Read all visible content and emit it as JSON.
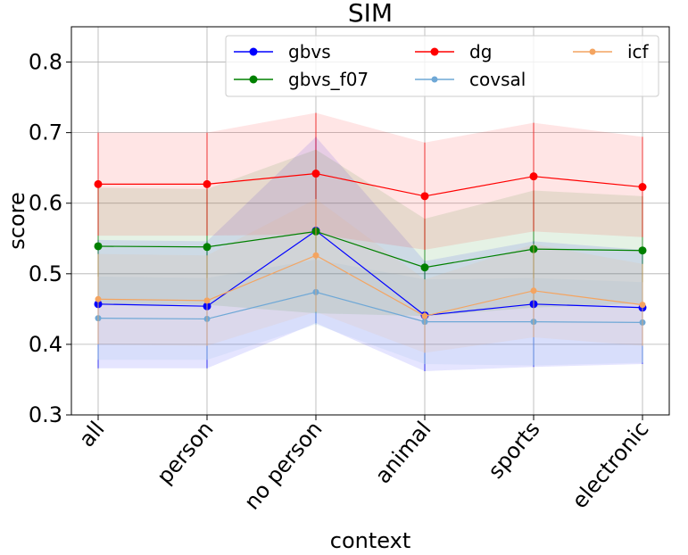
{
  "chart_data": {
    "type": "line",
    "title": "SIM",
    "xlabel": "context",
    "ylabel": "score",
    "categories": [
      "all",
      "person",
      "no person",
      "animal",
      "sports",
      "electronic"
    ],
    "ylim": [
      0.3,
      0.85
    ],
    "yticks": [
      "0.3",
      "0.4",
      "0.5",
      "0.6",
      "0.7",
      "0.8"
    ],
    "grid": true,
    "legend_position": "top-right",
    "series": [
      {
        "name": "gbvs",
        "color": "#0000ff",
        "values": [
          0.457,
          0.454,
          0.561,
          0.441,
          0.457,
          0.452
        ],
        "band_lower": [
          0.366,
          0.366,
          0.43,
          0.362,
          0.368,
          0.372
        ],
        "band_upper": [
          0.548,
          0.546,
          0.694,
          0.518,
          0.546,
          0.534
        ]
      },
      {
        "name": "gbvs_f07",
        "color": "#008000",
        "values": [
          0.539,
          0.538,
          0.56,
          0.509,
          0.535,
          0.533
        ],
        "band_lower": [
          0.456,
          0.456,
          0.444,
          0.44,
          0.452,
          0.458
        ],
        "band_upper": [
          0.622,
          0.62,
          0.676,
          0.578,
          0.618,
          0.61
        ]
      },
      {
        "name": "dg",
        "color": "#ff0000",
        "values": [
          0.627,
          0.627,
          0.642,
          0.61,
          0.638,
          0.623
        ],
        "band_lower": [
          0.554,
          0.554,
          0.556,
          0.534,
          0.56,
          0.552
        ],
        "band_upper": [
          0.7,
          0.7,
          0.728,
          0.686,
          0.714,
          0.694
        ]
      },
      {
        "name": "covsal",
        "color": "#6fa8d6",
        "values": [
          0.437,
          0.436,
          0.474,
          0.432,
          0.432,
          0.431
        ],
        "band_lower": [
          0.378,
          0.378,
          0.428,
          0.372,
          0.37,
          0.374
        ],
        "band_upper": [
          0.496,
          0.494,
          0.52,
          0.492,
          0.494,
          0.488
        ]
      },
      {
        "name": "icf",
        "color": "#f4a460",
        "values": [
          0.464,
          0.462,
          0.526,
          0.44,
          0.476,
          0.456
        ],
        "band_lower": [
          0.4,
          0.398,
          0.446,
          0.388,
          0.41,
          0.398
        ],
        "band_upper": [
          0.528,
          0.526,
          0.606,
          0.492,
          0.542,
          0.514
        ]
      }
    ]
  }
}
